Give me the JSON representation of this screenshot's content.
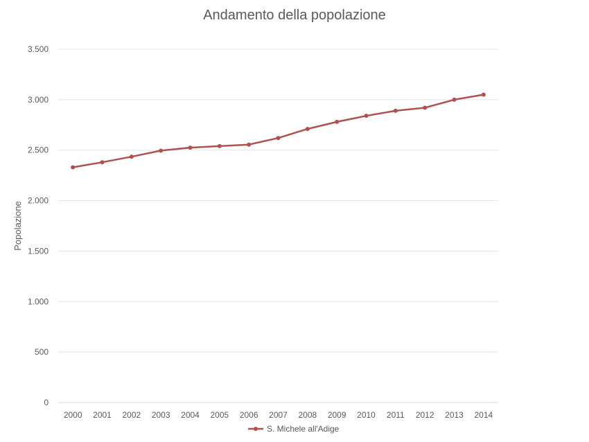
{
  "chart_data": {
    "type": "line",
    "title": "Andamento della popolazione",
    "xlabel": "",
    "ylabel": "Popolazione",
    "categories": [
      "2000",
      "2001",
      "2002",
      "2003",
      "2004",
      "2005",
      "2006",
      "2007",
      "2008",
      "2009",
      "2010",
      "2011",
      "2012",
      "2013",
      "2014"
    ],
    "series": [
      {
        "name": "S. Michele all'Adige",
        "color": "#b0504f",
        "values": [
          2330,
          2380,
          2435,
          2495,
          2525,
          2540,
          2555,
          2620,
          2710,
          2780,
          2840,
          2890,
          2920,
          3000,
          3050
        ]
      }
    ],
    "ylim": [
      0,
      3500
    ],
    "yticks": [
      0,
      500,
      1000,
      1500,
      2000,
      2500,
      3000,
      3500
    ],
    "ytick_labels": [
      "0",
      "500",
      "1.000",
      "1.500",
      "2.000",
      "2.500",
      "3.000",
      "3.500"
    ],
    "grid": true,
    "legend_position": "bottom"
  }
}
